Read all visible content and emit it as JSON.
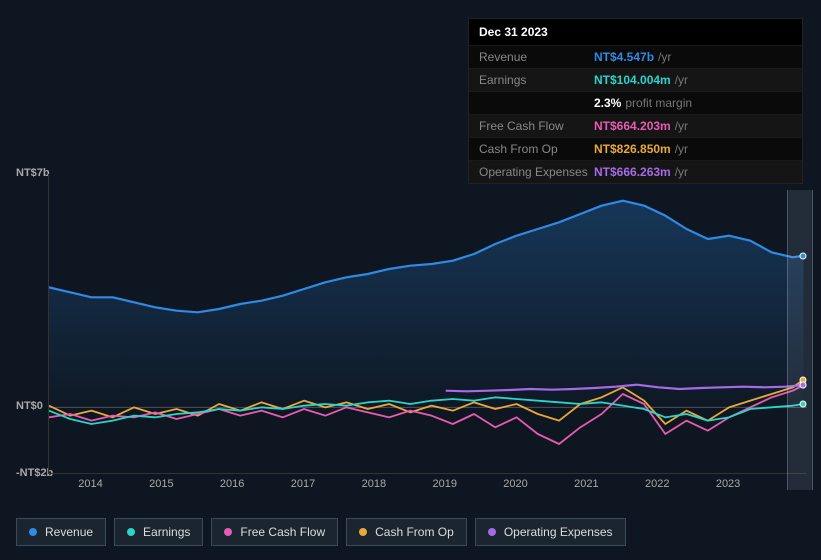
{
  "tooltip": {
    "date": "Dec 31 2023",
    "rows": [
      {
        "label": "Revenue",
        "value": "NT$4.547b",
        "suffix": "/yr",
        "color": "#2e8ae6"
      },
      {
        "label": "Earnings",
        "value": "NT$104.004m",
        "suffix": "/yr",
        "color": "#2ad4c9"
      },
      {
        "label": "",
        "value": "2.3%",
        "suffix": "profit margin",
        "color": "#ffffff"
      },
      {
        "label": "Free Cash Flow",
        "value": "NT$664.203m",
        "suffix": "/yr",
        "color": "#e85bb0"
      },
      {
        "label": "Cash From Op",
        "value": "NT$826.850m",
        "suffix": "/yr",
        "color": "#e8a83a"
      },
      {
        "label": "Operating Expenses",
        "value": "NT$666.263m",
        "suffix": "/yr",
        "color": "#a56ae8"
      }
    ]
  },
  "chart": {
    "colors": {
      "revenue": "#2e8ae6",
      "earnings": "#2ad4c9",
      "fcf": "#e85bb0",
      "cfo": "#e8a83a",
      "opex": "#a56ae8",
      "grid": "#333",
      "axis_text": "#aaa",
      "bg": "#0e1621"
    },
    "ylim": [
      -2,
      7
    ],
    "yticks": [
      {
        "v": 7,
        "label": "NT$7b"
      },
      {
        "v": 0,
        "label": "NT$0"
      },
      {
        "v": -2,
        "label": "-NT$2b"
      }
    ],
    "xlim": [
      2013.4,
      2024.1
    ],
    "xticks": [
      2014,
      2015,
      2016,
      2017,
      2018,
      2019,
      2020,
      2021,
      2022,
      2023
    ],
    "cursor_x": 2024.0,
    "series": {
      "revenue": [
        [
          2013.4,
          3.6
        ],
        [
          2013.7,
          3.45
        ],
        [
          2014.0,
          3.3
        ],
        [
          2014.3,
          3.3
        ],
        [
          2014.6,
          3.15
        ],
        [
          2014.9,
          3.0
        ],
        [
          2015.2,
          2.9
        ],
        [
          2015.5,
          2.85
        ],
        [
          2015.8,
          2.95
        ],
        [
          2016.1,
          3.1
        ],
        [
          2016.4,
          3.2
        ],
        [
          2016.7,
          3.35
        ],
        [
          2017.0,
          3.55
        ],
        [
          2017.3,
          3.75
        ],
        [
          2017.6,
          3.9
        ],
        [
          2017.9,
          4.0
        ],
        [
          2018.2,
          4.15
        ],
        [
          2018.5,
          4.25
        ],
        [
          2018.8,
          4.3
        ],
        [
          2019.1,
          4.4
        ],
        [
          2019.4,
          4.6
        ],
        [
          2019.7,
          4.9
        ],
        [
          2020.0,
          5.15
        ],
        [
          2020.3,
          5.35
        ],
        [
          2020.6,
          5.55
        ],
        [
          2020.9,
          5.8
        ],
        [
          2021.2,
          6.05
        ],
        [
          2021.5,
          6.2
        ],
        [
          2021.8,
          6.05
        ],
        [
          2022.1,
          5.75
        ],
        [
          2022.4,
          5.35
        ],
        [
          2022.7,
          5.05
        ],
        [
          2023.0,
          5.15
        ],
        [
          2023.3,
          5.0
        ],
        [
          2023.6,
          4.65
        ],
        [
          2023.9,
          4.5
        ],
        [
          2024.05,
          4.55
        ]
      ],
      "earnings": [
        [
          2013.4,
          -0.1
        ],
        [
          2013.7,
          -0.35
        ],
        [
          2014.0,
          -0.5
        ],
        [
          2014.3,
          -0.4
        ],
        [
          2014.6,
          -0.25
        ],
        [
          2014.9,
          -0.3
        ],
        [
          2015.2,
          -0.2
        ],
        [
          2015.5,
          -0.15
        ],
        [
          2015.8,
          -0.05
        ],
        [
          2016.1,
          -0.1
        ],
        [
          2016.4,
          0.0
        ],
        [
          2016.7,
          -0.05
        ],
        [
          2017.0,
          0.05
        ],
        [
          2017.3,
          0.1
        ],
        [
          2017.6,
          0.05
        ],
        [
          2017.9,
          0.15
        ],
        [
          2018.2,
          0.2
        ],
        [
          2018.5,
          0.1
        ],
        [
          2018.8,
          0.2
        ],
        [
          2019.1,
          0.25
        ],
        [
          2019.4,
          0.2
        ],
        [
          2019.7,
          0.3
        ],
        [
          2020.0,
          0.25
        ],
        [
          2020.3,
          0.2
        ],
        [
          2020.6,
          0.15
        ],
        [
          2020.9,
          0.1
        ],
        [
          2021.2,
          0.15
        ],
        [
          2021.5,
          0.05
        ],
        [
          2021.8,
          -0.05
        ],
        [
          2022.1,
          -0.3
        ],
        [
          2022.4,
          -0.2
        ],
        [
          2022.7,
          -0.4
        ],
        [
          2023.0,
          -0.3
        ],
        [
          2023.3,
          -0.05
        ],
        [
          2023.6,
          0.0
        ],
        [
          2023.9,
          0.05
        ],
        [
          2024.05,
          0.1
        ]
      ],
      "fcf": [
        [
          2013.4,
          -0.3
        ],
        [
          2013.7,
          -0.2
        ],
        [
          2014.0,
          -0.4
        ],
        [
          2014.3,
          -0.25
        ],
        [
          2014.6,
          -0.3
        ],
        [
          2014.9,
          -0.15
        ],
        [
          2015.2,
          -0.35
        ],
        [
          2015.5,
          -0.2
        ],
        [
          2015.8,
          -0.05
        ],
        [
          2016.1,
          -0.25
        ],
        [
          2016.4,
          -0.1
        ],
        [
          2016.7,
          -0.3
        ],
        [
          2017.0,
          -0.05
        ],
        [
          2017.3,
          -0.25
        ],
        [
          2017.6,
          0.0
        ],
        [
          2017.9,
          -0.15
        ],
        [
          2018.2,
          -0.3
        ],
        [
          2018.5,
          -0.1
        ],
        [
          2018.8,
          -0.25
        ],
        [
          2019.1,
          -0.5
        ],
        [
          2019.4,
          -0.2
        ],
        [
          2019.7,
          -0.6
        ],
        [
          2020.0,
          -0.3
        ],
        [
          2020.3,
          -0.8
        ],
        [
          2020.6,
          -1.1
        ],
        [
          2020.9,
          -0.6
        ],
        [
          2021.2,
          -0.2
        ],
        [
          2021.5,
          0.4
        ],
        [
          2021.8,
          0.1
        ],
        [
          2022.1,
          -0.8
        ],
        [
          2022.4,
          -0.4
        ],
        [
          2022.7,
          -0.7
        ],
        [
          2023.0,
          -0.3
        ],
        [
          2023.3,
          0.0
        ],
        [
          2023.6,
          0.3
        ],
        [
          2023.9,
          0.5
        ],
        [
          2024.05,
          0.66
        ]
      ],
      "cfo": [
        [
          2013.4,
          0.05
        ],
        [
          2013.7,
          -0.25
        ],
        [
          2014.0,
          -0.1
        ],
        [
          2014.3,
          -0.3
        ],
        [
          2014.6,
          0.0
        ],
        [
          2014.9,
          -0.2
        ],
        [
          2015.2,
          -0.05
        ],
        [
          2015.5,
          -0.25
        ],
        [
          2015.8,
          0.1
        ],
        [
          2016.1,
          -0.1
        ],
        [
          2016.4,
          0.15
        ],
        [
          2016.7,
          -0.05
        ],
        [
          2017.0,
          0.2
        ],
        [
          2017.3,
          0.0
        ],
        [
          2017.6,
          0.15
        ],
        [
          2017.9,
          -0.05
        ],
        [
          2018.2,
          0.1
        ],
        [
          2018.5,
          -0.15
        ],
        [
          2018.8,
          0.05
        ],
        [
          2019.1,
          -0.1
        ],
        [
          2019.4,
          0.15
        ],
        [
          2019.7,
          -0.05
        ],
        [
          2020.0,
          0.1
        ],
        [
          2020.3,
          -0.2
        ],
        [
          2020.6,
          -0.4
        ],
        [
          2020.9,
          0.1
        ],
        [
          2021.2,
          0.3
        ],
        [
          2021.5,
          0.6
        ],
        [
          2021.8,
          0.2
        ],
        [
          2022.1,
          -0.5
        ],
        [
          2022.4,
          -0.1
        ],
        [
          2022.7,
          -0.4
        ],
        [
          2023.0,
          0.0
        ],
        [
          2023.3,
          0.2
        ],
        [
          2023.6,
          0.4
        ],
        [
          2023.9,
          0.6
        ],
        [
          2024.05,
          0.83
        ]
      ],
      "opex": [
        [
          2019.0,
          0.5
        ],
        [
          2019.3,
          0.48
        ],
        [
          2019.6,
          0.5
        ],
        [
          2019.9,
          0.52
        ],
        [
          2020.2,
          0.55
        ],
        [
          2020.5,
          0.53
        ],
        [
          2020.8,
          0.55
        ],
        [
          2021.1,
          0.58
        ],
        [
          2021.4,
          0.62
        ],
        [
          2021.7,
          0.68
        ],
        [
          2022.0,
          0.6
        ],
        [
          2022.3,
          0.55
        ],
        [
          2022.6,
          0.58
        ],
        [
          2022.9,
          0.6
        ],
        [
          2023.2,
          0.62
        ],
        [
          2023.5,
          0.6
        ],
        [
          2023.8,
          0.62
        ],
        [
          2024.05,
          0.67
        ]
      ]
    },
    "legend": [
      {
        "key": "revenue",
        "label": "Revenue"
      },
      {
        "key": "earnings",
        "label": "Earnings"
      },
      {
        "key": "fcf",
        "label": "Free Cash Flow"
      },
      {
        "key": "cfo",
        "label": "Cash From Op"
      },
      {
        "key": "opex",
        "label": "Operating Expenses"
      }
    ]
  }
}
